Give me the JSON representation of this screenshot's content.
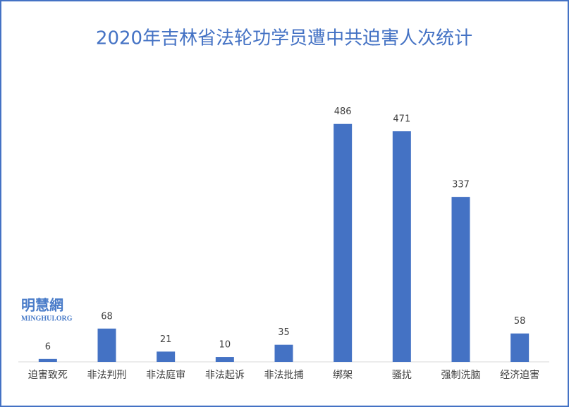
{
  "chart_data": {
    "type": "bar",
    "title": "2020年吉林省法轮功学员遭中共迫害人次统计",
    "categories": [
      "迫害致死",
      "非法判刑",
      "非法庭审",
      "非法起诉",
      "非法批捕",
      "绑架",
      "骚扰",
      "强制洗脑",
      "经济迫害"
    ],
    "values": [
      6,
      68,
      21,
      10,
      35,
      486,
      471,
      337,
      58
    ],
    "color": "#4472c4",
    "ylim": [
      0,
      500
    ],
    "watermark": {
      "name": "明慧網",
      "site": "MINGHUI.ORG"
    }
  }
}
